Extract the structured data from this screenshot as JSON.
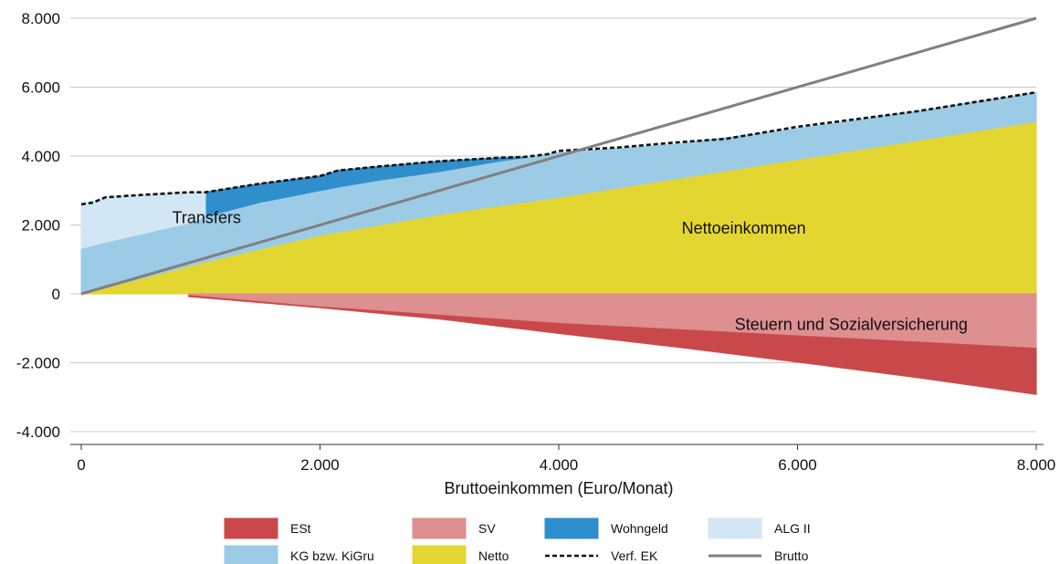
{
  "chart_data": {
    "type": "area",
    "xlabel": "Bruttoeinkommen (Euro/Monat)",
    "ylabel": "",
    "xlim": [
      0,
      8000
    ],
    "ylim": [
      -4000,
      8000
    ],
    "x_ticks": [
      0,
      2000,
      4000,
      6000,
      8000
    ],
    "x_tick_labels": [
      "0",
      "2.000",
      "4.000",
      "6.000",
      "8.000"
    ],
    "y_ticks": [
      -4000,
      -2000,
      0,
      2000,
      4000,
      6000,
      8000
    ],
    "y_tick_labels": [
      "-4.000",
      "-2.000",
      "0",
      "2.000",
      "4.000",
      "6.000",
      "8.000"
    ],
    "grid": "horizontal",
    "legend_position": "bottom",
    "colors": {
      "ESt": "#c9484a",
      "SV": "#de8f90",
      "Wohngeld": "#2f8fcc",
      "ALG II": "#d3e6f3",
      "KG bzw. KiGru": "#9ccbe6",
      "Netto": "#e4d631",
      "Verf. EK": "#111111",
      "Brutto": "#808080"
    },
    "series": [
      {
        "name": "Netto",
        "type": "area",
        "x": [
          0,
          900,
          1000,
          2000,
          3000,
          4000,
          5000,
          6000,
          7000,
          8000
        ],
        "lower": [
          0,
          0,
          0,
          0,
          0,
          0,
          0,
          0,
          0,
          0
        ],
        "upper": [
          0,
          800,
          900,
          1700,
          2300,
          2800,
          3350,
          3900,
          4450,
          5000
        ]
      },
      {
        "name": "KG bzw. KiGru",
        "type": "area",
        "x": [
          0,
          900,
          1040,
          2000,
          3000,
          4000,
          5000,
          6000,
          7000,
          8000
        ],
        "lower": [
          0,
          800,
          930,
          1700,
          2300,
          2800,
          3350,
          3900,
          4450,
          5000
        ],
        "upper": [
          1320,
          2050,
          2250,
          3000,
          3550,
          4100,
          4350,
          4800,
          5300,
          5850
        ]
      },
      {
        "name": "Wohngeld",
        "type": "area",
        "x": [
          1040,
          1500,
          2000,
          2150,
          2500,
          3000,
          3500,
          3700
        ],
        "lower": [
          2250,
          2650,
          3000,
          3100,
          3300,
          3550,
          3850,
          3950
        ],
        "upper": [
          2950,
          3200,
          3420,
          3580,
          3700,
          3850,
          3950,
          3970
        ]
      },
      {
        "name": "ALG II",
        "type": "area",
        "x": [
          0,
          200,
          900,
          1040
        ],
        "lower": [
          1320,
          1500,
          2050,
          2250
        ],
        "upper": [
          2600,
          2800,
          2950,
          2950
        ]
      },
      {
        "name": "SV",
        "type": "area",
        "x": [
          900,
          2000,
          3000,
          4000,
          5000,
          6000,
          7000,
          8000
        ],
        "lower": [
          -50,
          -380,
          -620,
          -860,
          -1040,
          -1220,
          -1400,
          -1580
        ],
        "upper": [
          0,
          0,
          0,
          0,
          0,
          0,
          0,
          0
        ]
      },
      {
        "name": "ESt",
        "type": "area",
        "x": [
          900,
          2000,
          3000,
          4000,
          5000,
          6000,
          7000,
          8000
        ],
        "lower": [
          -80,
          -400,
          -730,
          -1150,
          -1550,
          -1980,
          -2430,
          -2920
        ],
        "upper": [
          -50,
          -380,
          -620,
          -860,
          -1040,
          -1220,
          -1400,
          -1580
        ]
      },
      {
        "name": "Verf. EK",
        "type": "line",
        "style": "dashed",
        "x": [
          0,
          100,
          200,
          400,
          900,
          1040,
          1500,
          2000,
          2150,
          2500,
          3000,
          3500,
          3700,
          3900,
          4000,
          4500,
          5000,
          5400,
          6000,
          7000,
          8000
        ],
        "y": [
          2600,
          2650,
          2800,
          2850,
          2950,
          2950,
          3200,
          3420,
          3580,
          3700,
          3850,
          3950,
          3970,
          4050,
          4150,
          4250,
          4400,
          4500,
          4850,
          5300,
          5850
        ]
      },
      {
        "name": "Brutto",
        "type": "line",
        "style": "solid",
        "x": [
          0,
          8000
        ],
        "y": [
          0,
          8000
        ]
      }
    ],
    "annotations": [
      {
        "text": "Transfers",
        "x": 1050,
        "y": 2050
      },
      {
        "text": "Nettoeinkommen",
        "x": 5550,
        "y": 1750
      },
      {
        "text": "Steuern und Sozialversicherung",
        "x": 6450,
        "y": -1050
      }
    ],
    "legend": [
      {
        "label": "ESt",
        "kind": "box",
        "color": "#c9484a"
      },
      {
        "label": "SV",
        "kind": "box",
        "color": "#de8f90"
      },
      {
        "label": "Wohngeld",
        "kind": "box",
        "color": "#2f8fcc"
      },
      {
        "label": "ALG II",
        "kind": "box",
        "color": "#d3e6f3"
      },
      {
        "label": "KG bzw. KiGru",
        "kind": "box",
        "color": "#9ccbe6"
      },
      {
        "label": "Netto",
        "kind": "box",
        "color": "#e4d631"
      },
      {
        "label": "Verf. EK",
        "kind": "dash",
        "color": "#111111"
      },
      {
        "label": "Brutto",
        "kind": "line",
        "color": "#808080"
      }
    ]
  }
}
